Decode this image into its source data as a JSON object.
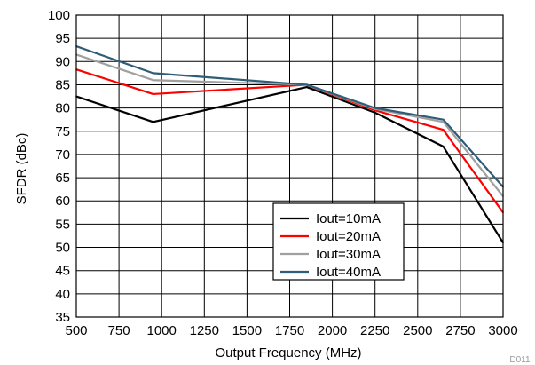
{
  "chart_data": {
    "type": "line",
    "title": "",
    "xlabel": "Output Frequency (MHz)",
    "ylabel": "SFDR (dBc)",
    "xlim": [
      500,
      3000
    ],
    "ylim": [
      35,
      100
    ],
    "xticks": [
      500,
      750,
      1000,
      1250,
      1500,
      1750,
      2000,
      2250,
      2500,
      2750,
      3000
    ],
    "yticks": [
      35,
      40,
      45,
      50,
      55,
      60,
      65,
      70,
      75,
      80,
      85,
      90,
      95,
      100
    ],
    "grid": true,
    "legend_position": "bottom-center-right",
    "series": [
      {
        "name": "Iout=10mA",
        "color": "#000000",
        "x": [
          500,
          950,
          1850,
          2250,
          2650,
          3000
        ],
        "y": [
          82.5,
          77.0,
          84.5,
          79.0,
          71.7,
          51.0
        ]
      },
      {
        "name": "Iout=20mA",
        "color": "#ff0000",
        "x": [
          500,
          950,
          1850,
          2250,
          2650,
          3000
        ],
        "y": [
          88.3,
          83.0,
          85.0,
          79.5,
          75.3,
          57.5
        ]
      },
      {
        "name": "Iout=30mA",
        "color": "#a0a0a0",
        "x": [
          500,
          950,
          1850,
          2250,
          2650,
          3000
        ],
        "y": [
          91.5,
          86.0,
          85.0,
          79.8,
          77.0,
          61.0
        ]
      },
      {
        "name": "Iout=40mA",
        "color": "#2f5d78",
        "x": [
          500,
          950,
          1850,
          2250,
          2650,
          3000
        ],
        "y": [
          93.3,
          87.5,
          85.0,
          80.0,
          77.5,
          63.0
        ]
      }
    ],
    "watermark": "D011"
  }
}
